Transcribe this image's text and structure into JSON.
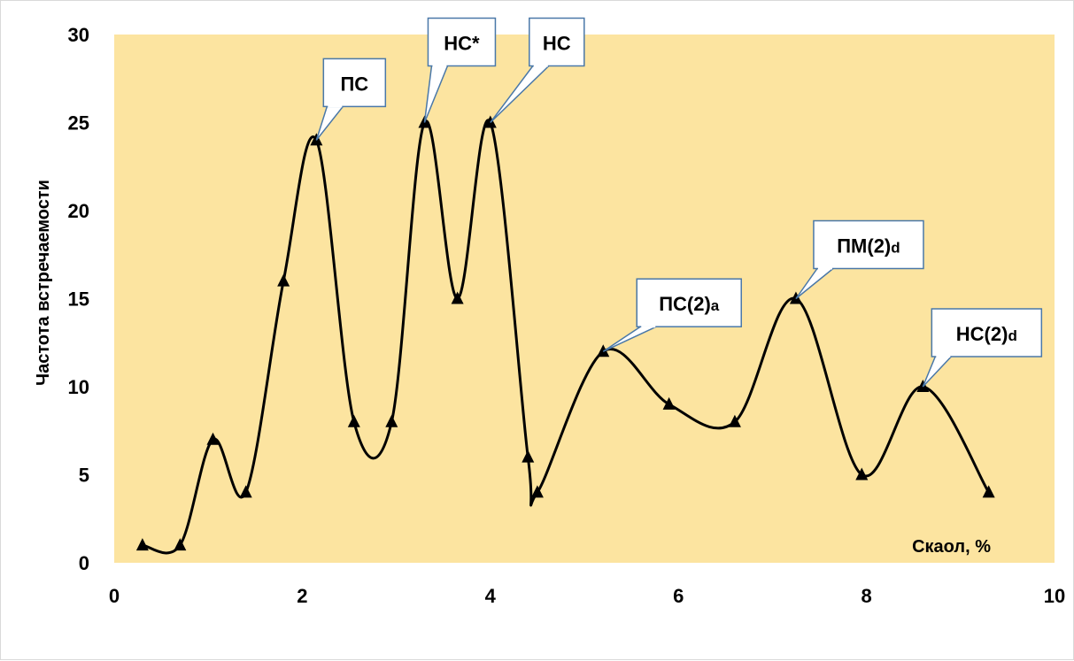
{
  "chart_data": {
    "type": "line",
    "title": "",
    "xlabel": "Скаол, %",
    "ylabel": "Частота встречаемости",
    "xlim": [
      0,
      10
    ],
    "ylim": [
      0,
      30
    ],
    "xticks": [
      "0",
      "2",
      "4",
      "6",
      "8",
      "10"
    ],
    "yticks": [
      "0",
      "5",
      "10",
      "15",
      "20",
      "25",
      "30"
    ],
    "grid": false,
    "legend": "none",
    "smooth": true,
    "marker": "triangle",
    "colors": {
      "plot_bg": "#fce4a0",
      "line": "#000000",
      "callout_border": "#4a78a8",
      "callout_fill": "#ffffff"
    },
    "series": [
      {
        "x": [
          0.3,
          0.7,
          1.05,
          1.4,
          1.8,
          2.15,
          2.55,
          2.95,
          3.3,
          3.65,
          4.0,
          4.4,
          4.5,
          5.2,
          5.9,
          6.6,
          7.25,
          7.95,
          8.6,
          9.3
        ],
        "y": [
          1,
          1,
          7,
          4,
          16,
          24,
          8,
          8,
          25,
          15,
          25,
          6,
          4,
          12,
          9,
          8,
          15,
          5,
          10,
          4
        ]
      }
    ],
    "annotations": [
      {
        "label": "ПС",
        "point": 5
      },
      {
        "label": "НС*",
        "point": 8
      },
      {
        "label": "НС",
        "point": 10
      },
      {
        "label": "ПС(2)",
        "sub": "a",
        "point": 13
      },
      {
        "label": "ПМ(2)",
        "sub": "d",
        "point": 16
      },
      {
        "label": "НС(2)",
        "sub": "d",
        "point": 18
      }
    ]
  }
}
